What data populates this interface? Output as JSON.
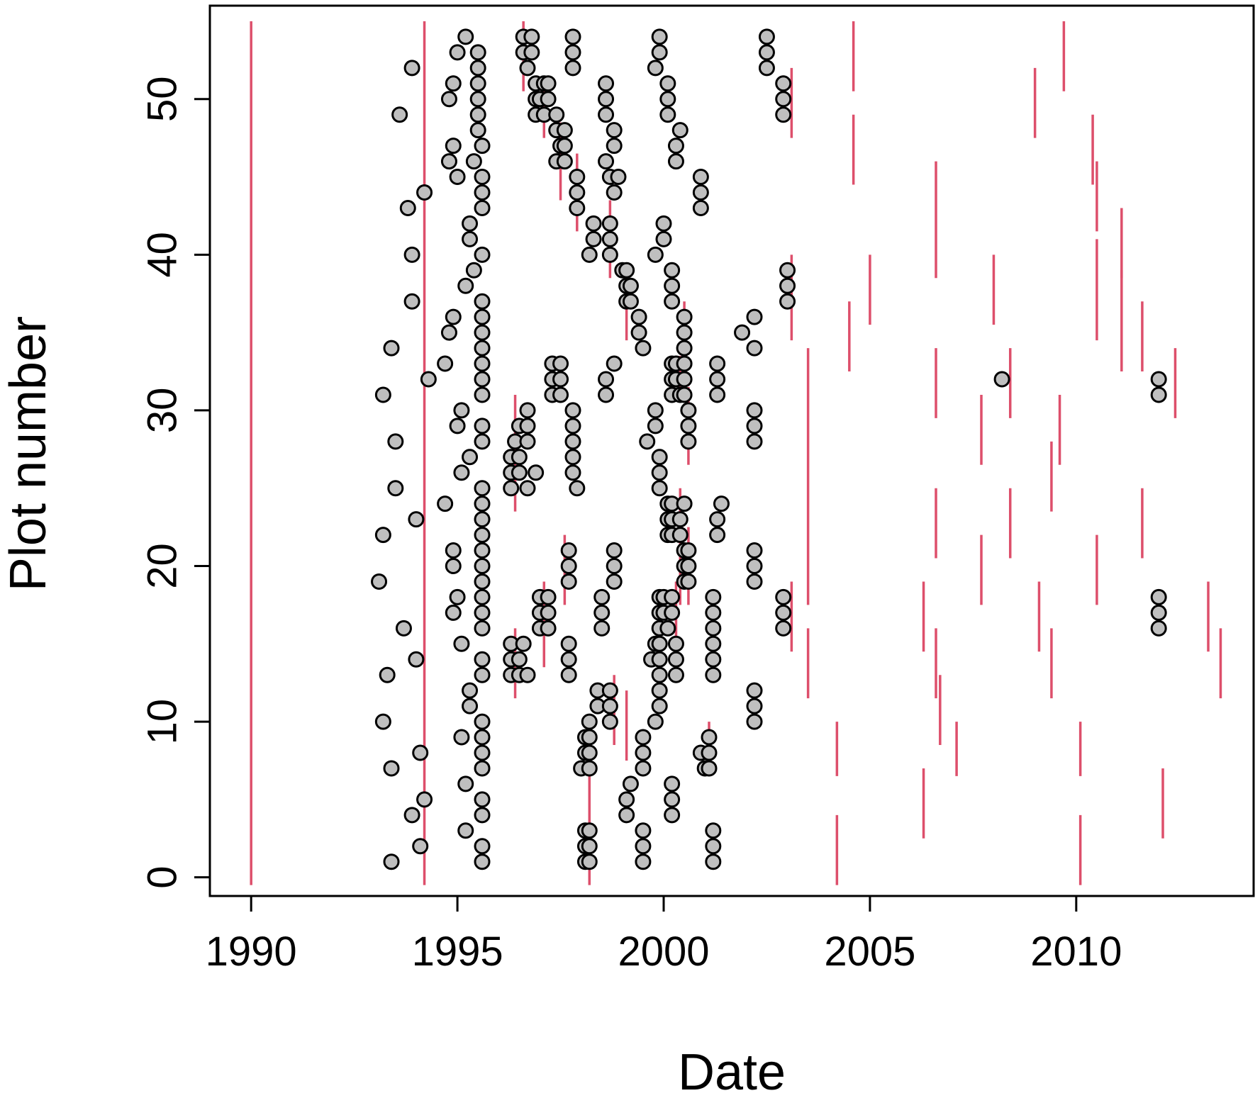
{
  "chart_data": {
    "type": "scatter",
    "xlabel": "Date",
    "ylabel": "Plot number",
    "xlim": [
      1989,
      2014.3
    ],
    "ylim": [
      -1.2,
      56
    ],
    "xticks": [
      1990,
      1995,
      2000,
      2005,
      2010
    ],
    "yticks": [
      0,
      10,
      20,
      30,
      40,
      50
    ],
    "colors": {
      "points_fill": "#bfbfbf",
      "points_stroke": "#000000",
      "segments": "#dd4f6b",
      "axis": "#000000"
    },
    "points": [
      [
        1993.1,
        19
      ],
      [
        1993.2,
        31
      ],
      [
        1993.2,
        22
      ],
      [
        1993.2,
        10
      ],
      [
        1993.3,
        13
      ],
      [
        1993.4,
        1
      ],
      [
        1993.4,
        7
      ],
      [
        1993.4,
        34
      ],
      [
        1993.5,
        28
      ],
      [
        1993.5,
        25
      ],
      [
        1993.6,
        49
      ],
      [
        1993.7,
        16
      ],
      [
        1993.8,
        43
      ],
      [
        1993.9,
        40
      ],
      [
        1993.9,
        37
      ],
      [
        1993.9,
        52
      ],
      [
        1993.9,
        4
      ],
      [
        1994.0,
        14
      ],
      [
        1994.0,
        23
      ],
      [
        1994.1,
        2
      ],
      [
        1994.1,
        8
      ],
      [
        1994.2,
        5
      ],
      [
        1994.2,
        44
      ],
      [
        1994.3,
        32
      ],
      [
        1994.7,
        24
      ],
      [
        1994.7,
        33
      ],
      [
        1994.8,
        35
      ],
      [
        1994.8,
        50
      ],
      [
        1994.8,
        46
      ],
      [
        1994.9,
        36
      ],
      [
        1994.9,
        17
      ],
      [
        1994.9,
        20
      ],
      [
        1994.9,
        47
      ],
      [
        1994.9,
        21
      ],
      [
        1994.9,
        51
      ],
      [
        1995.0,
        45
      ],
      [
        1995.0,
        18
      ],
      [
        1995.0,
        53
      ],
      [
        1995.0,
        29
      ],
      [
        1995.1,
        9
      ],
      [
        1995.1,
        15
      ],
      [
        1995.1,
        26
      ],
      [
        1995.1,
        30
      ],
      [
        1995.2,
        6
      ],
      [
        1995.2,
        3
      ],
      [
        1995.2,
        38
      ],
      [
        1995.2,
        54
      ],
      [
        1995.3,
        27
      ],
      [
        1995.3,
        11
      ],
      [
        1995.3,
        12
      ],
      [
        1995.3,
        41
      ],
      [
        1995.3,
        42
      ],
      [
        1995.4,
        46
      ],
      [
        1995.4,
        39
      ],
      [
        1995.5,
        48
      ],
      [
        1995.5,
        49
      ],
      [
        1995.5,
        50
      ],
      [
        1995.5,
        51
      ],
      [
        1995.5,
        52
      ],
      [
        1995.5,
        53
      ],
      [
        1995.6,
        1
      ],
      [
        1995.6,
        2
      ],
      [
        1995.6,
        4
      ],
      [
        1995.6,
        5
      ],
      [
        1995.6,
        7
      ],
      [
        1995.6,
        8
      ],
      [
        1995.6,
        9
      ],
      [
        1995.6,
        10
      ],
      [
        1995.6,
        13
      ],
      [
        1995.6,
        14
      ],
      [
        1995.6,
        16
      ],
      [
        1995.6,
        17
      ],
      [
        1995.6,
        18
      ],
      [
        1995.6,
        19
      ],
      [
        1995.6,
        20
      ],
      [
        1995.6,
        21
      ],
      [
        1995.6,
        22
      ],
      [
        1995.6,
        23
      ],
      [
        1995.6,
        24
      ],
      [
        1995.6,
        25
      ],
      [
        1995.6,
        28
      ],
      [
        1995.6,
        29
      ],
      [
        1995.6,
        31
      ],
      [
        1995.6,
        32
      ],
      [
        1995.6,
        33
      ],
      [
        1995.6,
        34
      ],
      [
        1995.6,
        35
      ],
      [
        1995.6,
        36
      ],
      [
        1995.6,
        37
      ],
      [
        1995.6,
        40
      ],
      [
        1995.6,
        43
      ],
      [
        1995.6,
        44
      ],
      [
        1995.6,
        45
      ],
      [
        1995.6,
        47
      ],
      [
        1996.3,
        25
      ],
      [
        1996.3,
        26
      ],
      [
        1996.3,
        27
      ],
      [
        1996.3,
        13
      ],
      [
        1996.3,
        14
      ],
      [
        1996.3,
        15
      ],
      [
        1996.4,
        28
      ],
      [
        1996.5,
        26
      ],
      [
        1996.5,
        27
      ],
      [
        1996.5,
        29
      ],
      [
        1996.5,
        13
      ],
      [
        1996.5,
        14
      ],
      [
        1996.6,
        15
      ],
      [
        1996.6,
        53
      ],
      [
        1996.6,
        54
      ],
      [
        1996.7,
        25
      ],
      [
        1996.7,
        28
      ],
      [
        1996.7,
        29
      ],
      [
        1996.7,
        30
      ],
      [
        1996.7,
        13
      ],
      [
        1996.7,
        52
      ],
      [
        1996.8,
        53
      ],
      [
        1996.8,
        54
      ],
      [
        1996.9,
        51
      ],
      [
        1996.9,
        50
      ],
      [
        1996.9,
        49
      ],
      [
        1996.9,
        26
      ],
      [
        1997.0,
        18
      ],
      [
        1997.0,
        17
      ],
      [
        1997.0,
        16
      ],
      [
        1997.0,
        50
      ],
      [
        1997.1,
        51
      ],
      [
        1997.1,
        49
      ],
      [
        1997.2,
        18
      ],
      [
        1997.2,
        17
      ],
      [
        1997.2,
        16
      ],
      [
        1997.2,
        50
      ],
      [
        1997.2,
        51
      ],
      [
        1997.3,
        32
      ],
      [
        1997.3,
        33
      ],
      [
        1997.3,
        31
      ],
      [
        1997.4,
        49
      ],
      [
        1997.4,
        48
      ],
      [
        1997.4,
        46
      ],
      [
        1997.5,
        32
      ],
      [
        1997.5,
        33
      ],
      [
        1997.5,
        31
      ],
      [
        1997.5,
        47
      ],
      [
        1997.6,
        46
      ],
      [
        1997.6,
        48
      ],
      [
        1997.6,
        47
      ],
      [
        1997.7,
        21
      ],
      [
        1997.7,
        20
      ],
      [
        1997.7,
        19
      ],
      [
        1997.7,
        15
      ],
      [
        1997.7,
        14
      ],
      [
        1997.7,
        13
      ],
      [
        1997.8,
        52
      ],
      [
        1997.8,
        53
      ],
      [
        1997.8,
        54
      ],
      [
        1997.8,
        30
      ],
      [
        1997.8,
        29
      ],
      [
        1997.8,
        28
      ],
      [
        1997.8,
        27
      ],
      [
        1997.8,
        26
      ],
      [
        1997.9,
        25
      ],
      [
        1997.9,
        43
      ],
      [
        1997.9,
        44
      ],
      [
        1997.9,
        45
      ],
      [
        1998.0,
        7
      ],
      [
        1998.1,
        1
      ],
      [
        1998.1,
        2
      ],
      [
        1998.1,
        3
      ],
      [
        1998.1,
        8
      ],
      [
        1998.1,
        9
      ],
      [
        1998.2,
        7
      ],
      [
        1998.2,
        8
      ],
      [
        1998.2,
        9
      ],
      [
        1998.2,
        1
      ],
      [
        1998.2,
        2
      ],
      [
        1998.2,
        3
      ],
      [
        1998.2,
        10
      ],
      [
        1998.2,
        40
      ],
      [
        1998.3,
        41
      ],
      [
        1998.3,
        42
      ],
      [
        1998.4,
        11
      ],
      [
        1998.4,
        12
      ],
      [
        1998.5,
        16
      ],
      [
        1998.5,
        17
      ],
      [
        1998.5,
        18
      ],
      [
        1998.6,
        31
      ],
      [
        1998.6,
        32
      ],
      [
        1998.6,
        46
      ],
      [
        1998.6,
        49
      ],
      [
        1998.6,
        50
      ],
      [
        1998.6,
        51
      ],
      [
        1998.7,
        10
      ],
      [
        1998.7,
        11
      ],
      [
        1998.7,
        12
      ],
      [
        1998.7,
        45
      ],
      [
        1998.7,
        40
      ],
      [
        1998.7,
        41
      ],
      [
        1998.7,
        42
      ],
      [
        1998.8,
        44
      ],
      [
        1998.8,
        47
      ],
      [
        1998.8,
        48
      ],
      [
        1998.8,
        33
      ],
      [
        1998.8,
        19
      ],
      [
        1998.8,
        20
      ],
      [
        1998.8,
        21
      ],
      [
        1998.9,
        45
      ],
      [
        1999.0,
        39
      ],
      [
        1999.1,
        37
      ],
      [
        1999.1,
        38
      ],
      [
        1999.1,
        39
      ],
      [
        1999.1,
        4
      ],
      [
        1999.1,
        5
      ],
      [
        1999.2,
        6
      ],
      [
        1999.2,
        37
      ],
      [
        1999.2,
        38
      ],
      [
        1999.4,
        36
      ],
      [
        1999.4,
        35
      ],
      [
        1999.5,
        34
      ],
      [
        1999.5,
        1
      ],
      [
        1999.5,
        2
      ],
      [
        1999.5,
        3
      ],
      [
        1999.5,
        7
      ],
      [
        1999.5,
        8
      ],
      [
        1999.5,
        9
      ],
      [
        1999.6,
        28
      ],
      [
        1999.7,
        14
      ],
      [
        1999.8,
        15
      ],
      [
        1999.8,
        10
      ],
      [
        1999.8,
        30
      ],
      [
        1999.8,
        29
      ],
      [
        1999.8,
        40
      ],
      [
        1999.8,
        52
      ],
      [
        1999.9,
        53
      ],
      [
        1999.9,
        54
      ],
      [
        1999.9,
        11
      ],
      [
        1999.9,
        12
      ],
      [
        1999.9,
        13
      ],
      [
        1999.9,
        14
      ],
      [
        1999.9,
        15
      ],
      [
        1999.9,
        16
      ],
      [
        1999.9,
        17
      ],
      [
        1999.9,
        18
      ],
      [
        1999.9,
        25
      ],
      [
        1999.9,
        26
      ],
      [
        1999.9,
        27
      ],
      [
        2000.0,
        41
      ],
      [
        2000.0,
        42
      ],
      [
        2000.0,
        17
      ],
      [
        2000.0,
        18
      ],
      [
        2000.1,
        16
      ],
      [
        2000.1,
        22
      ],
      [
        2000.1,
        23
      ],
      [
        2000.1,
        24
      ],
      [
        2000.1,
        49
      ],
      [
        2000.1,
        50
      ],
      [
        2000.1,
        51
      ],
      [
        2000.2,
        32
      ],
      [
        2000.2,
        33
      ],
      [
        2000.2,
        31
      ],
      [
        2000.2,
        22
      ],
      [
        2000.2,
        23
      ],
      [
        2000.2,
        24
      ],
      [
        2000.2,
        37
      ],
      [
        2000.2,
        38
      ],
      [
        2000.2,
        39
      ],
      [
        2000.2,
        18
      ],
      [
        2000.2,
        17
      ],
      [
        2000.2,
        4
      ],
      [
        2000.2,
        5
      ],
      [
        2000.2,
        6
      ],
      [
        2000.3,
        13
      ],
      [
        2000.3,
        14
      ],
      [
        2000.3,
        15
      ],
      [
        2000.3,
        46
      ],
      [
        2000.3,
        47
      ],
      [
        2000.3,
        32
      ],
      [
        2000.3,
        33
      ],
      [
        2000.4,
        48
      ],
      [
        2000.4,
        31
      ],
      [
        2000.4,
        22
      ],
      [
        2000.4,
        23
      ],
      [
        2000.5,
        24
      ],
      [
        2000.5,
        21
      ],
      [
        2000.5,
        20
      ],
      [
        2000.5,
        19
      ],
      [
        2000.5,
        34
      ],
      [
        2000.5,
        35
      ],
      [
        2000.5,
        36
      ],
      [
        2000.5,
        31
      ],
      [
        2000.5,
        32
      ],
      [
        2000.5,
        33
      ],
      [
        2000.6,
        21
      ],
      [
        2000.6,
        20
      ],
      [
        2000.6,
        19
      ],
      [
        2000.6,
        30
      ],
      [
        2000.6,
        29
      ],
      [
        2000.6,
        28
      ],
      [
        2000.9,
        45
      ],
      [
        2000.9,
        44
      ],
      [
        2000.9,
        43
      ],
      [
        2000.9,
        8
      ],
      [
        2001.0,
        7
      ],
      [
        2001.1,
        9
      ],
      [
        2001.1,
        8
      ],
      [
        2001.1,
        7
      ],
      [
        2001.2,
        13
      ],
      [
        2001.2,
        14
      ],
      [
        2001.2,
        15
      ],
      [
        2001.2,
        16
      ],
      [
        2001.2,
        17
      ],
      [
        2001.2,
        18
      ],
      [
        2001.2,
        1
      ],
      [
        2001.2,
        2
      ],
      [
        2001.2,
        3
      ],
      [
        2001.3,
        31
      ],
      [
        2001.3,
        32
      ],
      [
        2001.3,
        33
      ],
      [
        2001.3,
        22
      ],
      [
        2001.3,
        23
      ],
      [
        2001.4,
        24
      ],
      [
        2001.9,
        35
      ],
      [
        2002.2,
        34
      ],
      [
        2002.2,
        36
      ],
      [
        2002.2,
        28
      ],
      [
        2002.2,
        29
      ],
      [
        2002.2,
        30
      ],
      [
        2002.2,
        19
      ],
      [
        2002.2,
        20
      ],
      [
        2002.2,
        21
      ],
      [
        2002.2,
        10
      ],
      [
        2002.2,
        11
      ],
      [
        2002.2,
        12
      ],
      [
        2002.5,
        52
      ],
      [
        2002.5,
        53
      ],
      [
        2002.5,
        54
      ],
      [
        2002.9,
        49
      ],
      [
        2002.9,
        50
      ],
      [
        2002.9,
        51
      ],
      [
        2002.9,
        16
      ],
      [
        2002.9,
        17
      ],
      [
        2002.9,
        18
      ],
      [
        2003.0,
        37
      ],
      [
        2003.0,
        38
      ],
      [
        2003.0,
        39
      ],
      [
        2008.2,
        32
      ],
      [
        2012.0,
        31
      ],
      [
        2012.0,
        32
      ],
      [
        2012.0,
        16
      ],
      [
        2012.0,
        17
      ],
      [
        2012.0,
        18
      ]
    ],
    "segments": [
      [
        1990.0,
        -0.5,
        55
      ],
      [
        1994.2,
        -0.5,
        55
      ],
      [
        1996.6,
        50.5,
        55
      ],
      [
        1997.1,
        47.5,
        51.5
      ],
      [
        1997.5,
        43.5,
        48.5
      ],
      [
        1997.9,
        41.5,
        46.5
      ],
      [
        1998.7,
        38.5,
        43.5
      ],
      [
        1999.1,
        34.5,
        39.5
      ],
      [
        2000.5,
        31.5,
        37
      ],
      [
        2000.6,
        26.5,
        31.5
      ],
      [
        1996.4,
        23.5,
        31
      ],
      [
        1997.6,
        17.5,
        22
      ],
      [
        1997.1,
        13.5,
        19
      ],
      [
        2000.3,
        12.5,
        19
      ],
      [
        2000.4,
        17.5,
        25
      ],
      [
        2000.6,
        17.5,
        22.5
      ],
      [
        1996.4,
        11.5,
        16
      ],
      [
        1998.8,
        8.5,
        13
      ],
      [
        1998.2,
        -0.5,
        10
      ],
      [
        1999.1,
        7.5,
        12
      ],
      [
        2001.1,
        6.5,
        10
      ],
      [
        2000.4,
        31.5,
        33.5
      ],
      [
        2003.1,
        47.5,
        52
      ],
      [
        2003.1,
        34.5,
        40
      ],
      [
        2003.5,
        17.5,
        34
      ],
      [
        2003.1,
        14.5,
        19
      ],
      [
        2003.5,
        11.5,
        16
      ],
      [
        2004.2,
        -0.5,
        4
      ],
      [
        2004.2,
        6.5,
        10
      ],
      [
        2004.6,
        44.5,
        49
      ],
      [
        2004.6,
        50.5,
        55
      ],
      [
        2004.5,
        32.5,
        37
      ],
      [
        2005.0,
        35.5,
        40
      ],
      [
        2006.3,
        14.5,
        19
      ],
      [
        2006.3,
        2.5,
        7
      ],
      [
        2006.6,
        38.5,
        46
      ],
      [
        2006.6,
        29.5,
        34
      ],
      [
        2006.6,
        20.5,
        25
      ],
      [
        2006.6,
        11.5,
        16
      ],
      [
        2006.7,
        8.5,
        13
      ],
      [
        2007.1,
        6.5,
        10
      ],
      [
        2007.7,
        26.5,
        31
      ],
      [
        2007.7,
        17.5,
        22
      ],
      [
        2008.0,
        35.5,
        40
      ],
      [
        2008.4,
        29.5,
        34
      ],
      [
        2008.4,
        20.5,
        25
      ],
      [
        2009.0,
        47.5,
        52
      ],
      [
        2009.1,
        14.5,
        19
      ],
      [
        2009.4,
        23.5,
        28
      ],
      [
        2009.4,
        11.5,
        16
      ],
      [
        2009.6,
        26.5,
        31
      ],
      [
        2009.7,
        50.5,
        55
      ],
      [
        2010.1,
        -0.5,
        4
      ],
      [
        2010.1,
        6.5,
        10
      ],
      [
        2010.4,
        44.5,
        49
      ],
      [
        2010.5,
        41.5,
        46
      ],
      [
        2010.5,
        34.5,
        41
      ],
      [
        2010.5,
        17.5,
        22
      ],
      [
        2011.1,
        38.5,
        43
      ],
      [
        2011.1,
        32.5,
        39
      ],
      [
        2011.6,
        32.5,
        37
      ],
      [
        2011.6,
        20.5,
        25
      ],
      [
        2012.1,
        2.5,
        7
      ],
      [
        2012.4,
        29.5,
        34
      ],
      [
        2013.2,
        14.5,
        19
      ],
      [
        2013.5,
        11.5,
        16
      ]
    ]
  }
}
